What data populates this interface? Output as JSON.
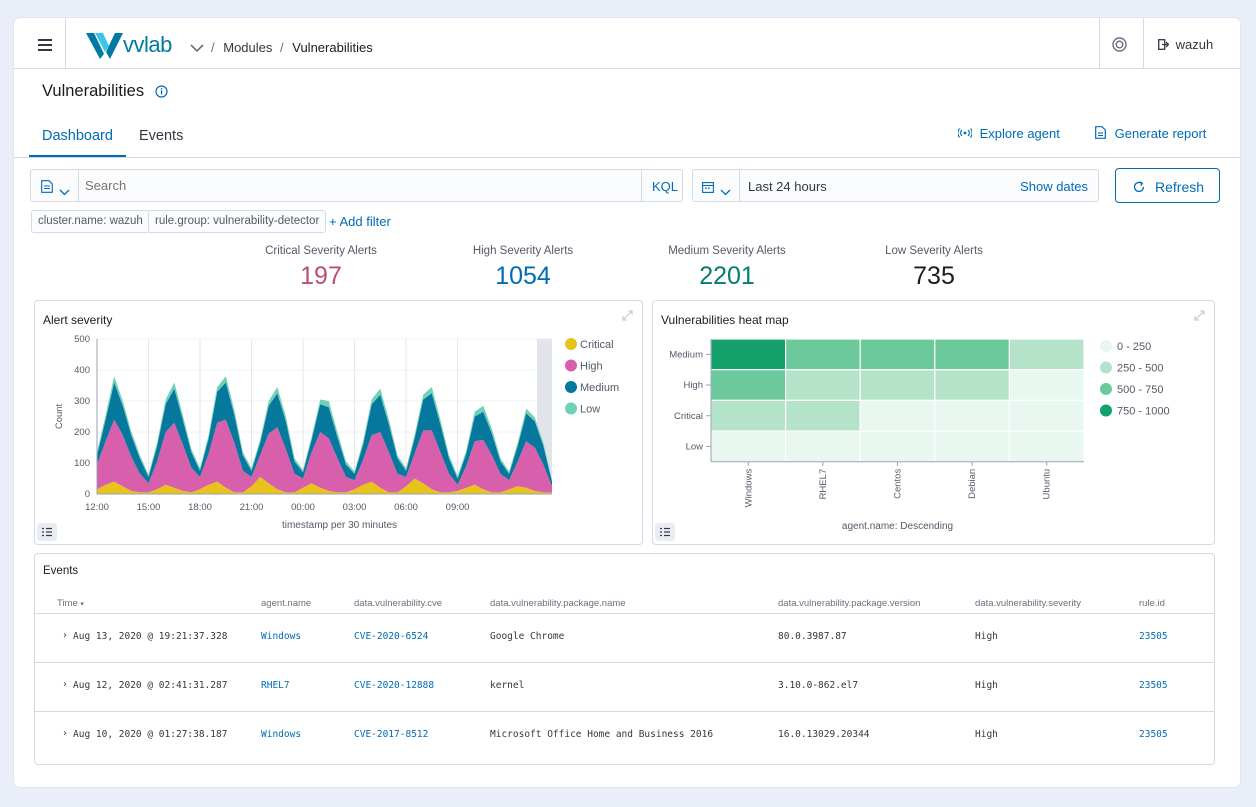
{
  "header": {
    "logo_text": "vvlab",
    "breadcrumb": [
      "Modules",
      "Vulnerabilities"
    ],
    "user": "wazuh"
  },
  "page": {
    "title": "Vulnerabilities",
    "tabs": [
      "Dashboard",
      "Events"
    ],
    "active_tab": "Dashboard",
    "explore_agent": "Explore agent",
    "generate_report": "Generate report"
  },
  "search": {
    "placeholder": "Search",
    "kql": "KQL",
    "time_range": "Last 24 hours",
    "show_dates": "Show dates",
    "refresh": "Refresh"
  },
  "filters": [
    "cluster.name: wazuh",
    "rule.group: vulnerability-detector"
  ],
  "add_filter": "+ Add filter",
  "stats": [
    {
      "label": "Critical Severity Alerts",
      "value": "197",
      "color": "#bd4c79"
    },
    {
      "label": "High Severity Alerts",
      "value": "1054",
      "color": "#006bb4"
    },
    {
      "label": "Medium Severity Alerts",
      "value": "2201",
      "color": "#017d73"
    },
    {
      "label": "Low Severity Alerts",
      "value": "735",
      "color": "#1a1c21"
    }
  ],
  "alert_chart": {
    "title": "Alert severity",
    "chart_data": {
      "type": "area",
      "x": [
        "12:00",
        "12:30",
        "13:00",
        "13:30",
        "14:00",
        "14:30",
        "15:00",
        "15:30",
        "16:00",
        "16:30",
        "17:00",
        "17:30",
        "18:00",
        "18:30",
        "19:00",
        "19:30",
        "20:00",
        "20:30",
        "21:00",
        "21:30",
        "22:00",
        "22:30",
        "23:00",
        "23:30",
        "00:00",
        "00:30",
        "01:00",
        "01:30",
        "02:00",
        "02:30",
        "03:00",
        "03:30",
        "04:00",
        "04:30",
        "05:00",
        "05:30",
        "06:00",
        "06:30",
        "07:00",
        "07:30",
        "08:00",
        "08:30",
        "09:00",
        "09:30",
        "10:00",
        "10:30",
        "11:00",
        "11:30",
        "12:00",
        "12:30",
        "13:00",
        "13:30",
        "14:00",
        "14:30"
      ],
      "xticks": [
        "15:00",
        "18:00",
        "21:00",
        "00:00",
        "03:00",
        "06:00",
        "09:00",
        "12:00"
      ],
      "xlabel": "timestamp per 30 minutes",
      "ylabel": "Count",
      "ylim": [
        0,
        500
      ],
      "yticks": [
        0,
        100,
        200,
        300,
        400,
        500
      ],
      "series": [
        {
          "name": "Critical",
          "color": "#e7c31c",
          "values": [
            15,
            30,
            40,
            25,
            10,
            5,
            5,
            15,
            30,
            20,
            10,
            5,
            15,
            30,
            40,
            20,
            5,
            5,
            25,
            55,
            35,
            15,
            5,
            5,
            20,
            35,
            20,
            10,
            5,
            5,
            15,
            30,
            40,
            20,
            5,
            5,
            25,
            50,
            35,
            15,
            5,
            5,
            10,
            20,
            30,
            15,
            5,
            5,
            15,
            25,
            20,
            10,
            5,
            5
          ]
        },
        {
          "name": "High",
          "color": "#d85fab",
          "values": [
            80,
            140,
            200,
            165,
            110,
            60,
            30,
            90,
            170,
            210,
            150,
            80,
            40,
            100,
            190,
            220,
            160,
            70,
            30,
            70,
            160,
            200,
            140,
            60,
            30,
            100,
            180,
            170,
            110,
            50,
            30,
            80,
            150,
            180,
            130,
            60,
            30,
            80,
            170,
            190,
            130,
            60,
            20,
            70,
            140,
            160,
            120,
            60,
            30,
            80,
            150,
            140,
            90,
            20
          ]
        },
        {
          "name": "Medium",
          "color": "#06789e",
          "values": [
            30,
            70,
            120,
            95,
            70,
            50,
            20,
            50,
            90,
            110,
            80,
            50,
            20,
            50,
            100,
            120,
            90,
            50,
            20,
            40,
            90,
            110,
            90,
            40,
            20,
            40,
            90,
            100,
            70,
            40,
            20,
            50,
            100,
            120,
            90,
            50,
            20,
            50,
            100,
            120,
            90,
            50,
            20,
            40,
            80,
            90,
            70,
            40,
            20,
            50,
            90,
            85,
            60,
            15
          ]
        },
        {
          "name": "Low",
          "color": "#6fd2b6",
          "values": [
            10,
            15,
            20,
            15,
            12,
            10,
            8,
            10,
            15,
            20,
            15,
            10,
            8,
            10,
            15,
            20,
            15,
            10,
            8,
            10,
            15,
            20,
            15,
            10,
            8,
            10,
            15,
            20,
            15,
            10,
            8,
            10,
            15,
            20,
            15,
            10,
            8,
            10,
            15,
            20,
            15,
            10,
            8,
            10,
            15,
            20,
            15,
            10,
            8,
            10,
            15,
            12,
            10,
            5
          ]
        }
      ]
    }
  },
  "heat_map": {
    "title": "Vulnerabilities heat map",
    "chart_data": {
      "type": "heatmap",
      "x": [
        "Windows",
        "RHEL7",
        "Centos",
        "Debian",
        "Ubuntu"
      ],
      "y": [
        "Medium",
        "High",
        "Critical",
        "Low"
      ],
      "xlabel": "agent.name: Descending",
      "values": [
        [
          1000,
          700,
          700,
          700,
          400
        ],
        [
          700,
          400,
          400,
          400,
          100
        ],
        [
          400,
          400,
          100,
          100,
          100
        ],
        [
          100,
          100,
          100,
          100,
          100
        ]
      ],
      "legend": [
        {
          "label": "0 - 250",
          "color": "#e8f7ef"
        },
        {
          "label": "250 - 500",
          "color": "#b4e3c9"
        },
        {
          "label": "500 - 750",
          "color": "#6cc99c"
        },
        {
          "label": "750 - 1000",
          "color": "#14a06a"
        }
      ]
    }
  },
  "events": {
    "title": "Events",
    "columns": [
      "Time",
      "agent.name",
      "data.vulnerability.cve",
      "data.vulnerability.package.name",
      "data.vulnerability.package.version",
      "data.vulnerability.severity",
      "rule.id"
    ],
    "rows": [
      [
        "Aug 13, 2020 @ 19:21:37.328",
        "Windows",
        "CVE-2020-6524",
        "Google Chrome",
        "80.0.3987.87",
        "High",
        "23505"
      ],
      [
        "Aug 12, 2020 @ 02:41:31.287",
        "RHEL7",
        "CVE-2020-12888",
        "kernel",
        "3.10.0-862.el7",
        "High",
        "23505"
      ],
      [
        "Aug 10, 2020 @ 01:27:38.187",
        "Windows",
        "CVE-2017-8512",
        "Microsoft Office Home and Business 2016",
        "16.0.13029.20344",
        "High",
        "23505"
      ]
    ]
  }
}
